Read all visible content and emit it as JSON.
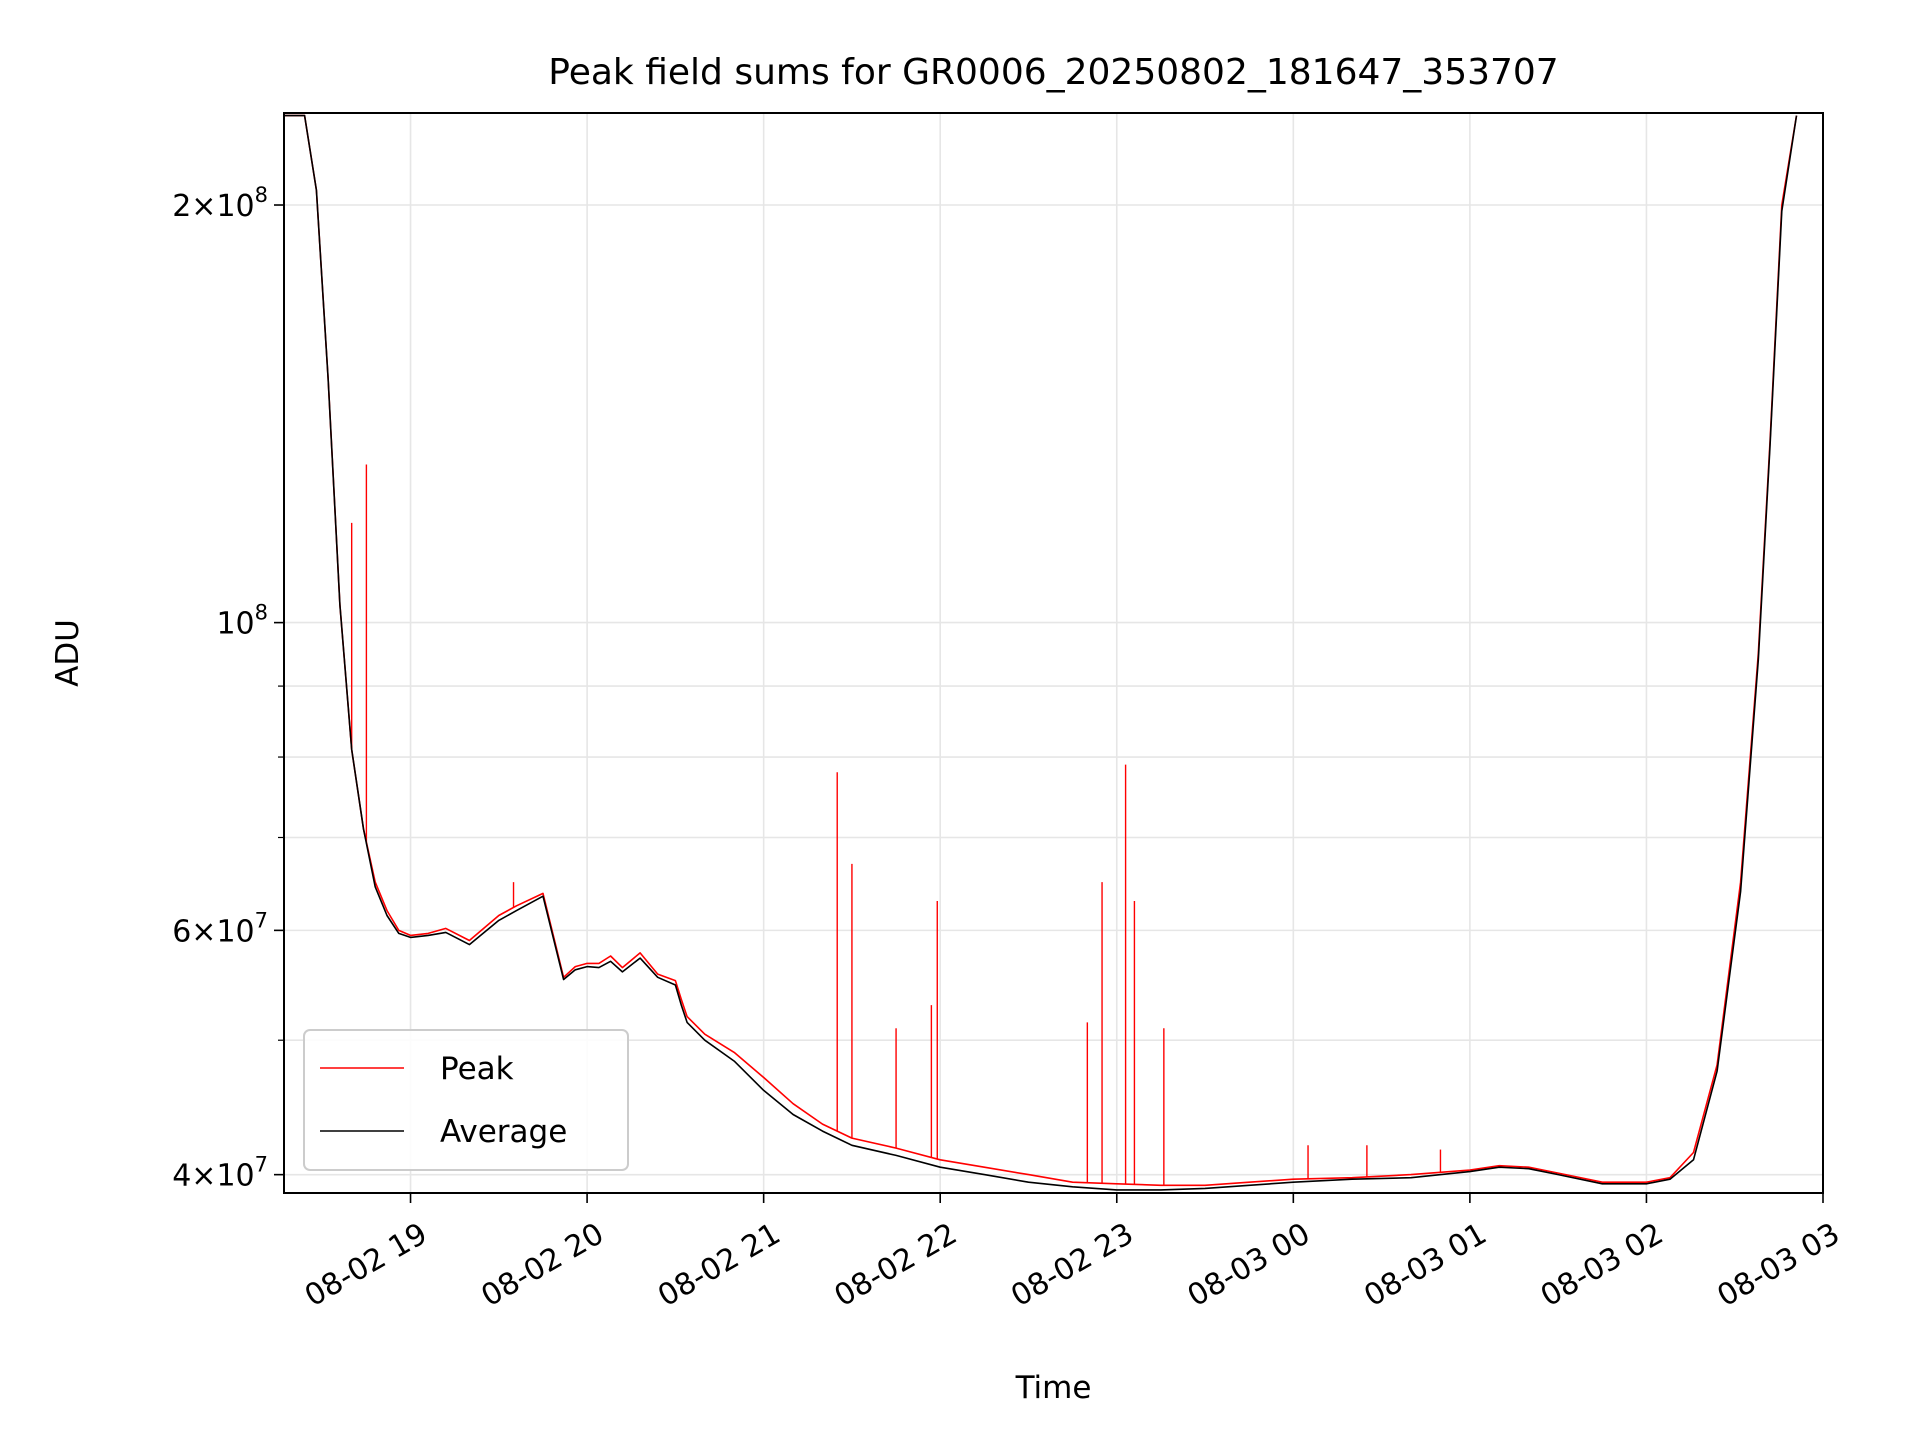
{
  "chart_data": {
    "type": "line",
    "title": "Peak field sums for GR0006_20250802_181647_353707",
    "xlabel": "Time",
    "ylabel": "ADU",
    "y_scale": "log",
    "ylim": [
      38800000,
      233000000
    ],
    "xlim": [
      "2025-08-02 18:17",
      "2025-08-03 03:00"
    ],
    "x_ticks": [
      {
        "value": "2025-08-02 19:00",
        "label": "08-02 19"
      },
      {
        "value": "2025-08-02 20:00",
        "label": "08-02 20"
      },
      {
        "value": "2025-08-02 21:00",
        "label": "08-02 21"
      },
      {
        "value": "2025-08-02 22:00",
        "label": "08-02 22"
      },
      {
        "value": "2025-08-02 23:00",
        "label": "08-02 23"
      },
      {
        "value": "2025-08-03 00:00",
        "label": "08-03 00"
      },
      {
        "value": "2025-08-03 01:00",
        "label": "08-03 01"
      },
      {
        "value": "2025-08-03 02:00",
        "label": "08-03 02"
      },
      {
        "value": "2025-08-03 03:00",
        "label": "08-03 03"
      }
    ],
    "y_ticks_major": [
      {
        "value": 40000000,
        "mantissa": "4",
        "exp": "7"
      },
      {
        "value": 60000000,
        "mantissa": "6",
        "exp": "7"
      },
      {
        "value": 100000000,
        "mantissa": "",
        "exp": "8"
      },
      {
        "value": 200000000,
        "mantissa": "2",
        "exp": "8"
      }
    ],
    "y_ticks_minor": [
      50000000,
      70000000,
      80000000,
      90000000
    ],
    "grid": true,
    "legend": {
      "placement": "lower-left"
    },
    "colors": {
      "peak": "#ff0000",
      "average": "#000000",
      "grid": "#e6e6e6"
    },
    "series": [
      {
        "name": "Peak",
        "color": "#ff0000",
        "x": [
          "2025-08-02 18:17",
          "2025-08-02 18:24",
          "2025-08-02 18:28",
          "2025-08-02 18:32",
          "2025-08-02 18:36",
          "2025-08-02 18:40",
          "2025-08-02 18:44",
          "2025-08-02 18:48",
          "2025-08-02 18:52",
          "2025-08-02 18:56",
          "2025-08-02 19:00",
          "2025-08-02 19:06",
          "2025-08-02 19:12",
          "2025-08-02 19:20",
          "2025-08-02 19:30",
          "2025-08-02 19:36",
          "2025-08-02 19:45",
          "2025-08-02 19:52",
          "2025-08-02 19:56",
          "2025-08-02 20:00",
          "2025-08-02 20:04",
          "2025-08-02 20:08",
          "2025-08-02 20:12",
          "2025-08-02 20:18",
          "2025-08-02 20:24",
          "2025-08-02 20:30",
          "2025-08-02 20:32",
          "2025-08-02 20:34",
          "2025-08-02 20:40",
          "2025-08-02 20:50",
          "2025-08-02 21:00",
          "2025-08-02 21:10",
          "2025-08-02 21:20",
          "2025-08-02 21:30",
          "2025-08-02 21:45",
          "2025-08-02 22:00",
          "2025-08-02 22:15",
          "2025-08-02 22:30",
          "2025-08-02 22:45",
          "2025-08-02 23:00",
          "2025-08-02 23:15",
          "2025-08-02 23:30",
          "2025-08-02 23:45",
          "2025-08-03 00:00",
          "2025-08-03 00:20",
          "2025-08-03 00:40",
          "2025-08-03 01:00",
          "2025-08-03 01:10",
          "2025-08-03 01:20",
          "2025-08-03 01:30",
          "2025-08-03 01:45",
          "2025-08-03 02:00",
          "2025-08-03 02:08",
          "2025-08-03 02:16",
          "2025-08-03 02:24",
          "2025-08-03 02:32",
          "2025-08-03 02:38",
          "2025-08-03 02:42",
          "2025-08-03 02:46",
          "2025-08-03 02:51"
        ],
        "y": [
          232000000,
          232000000,
          205000000,
          150000000,
          103000000,
          81000000,
          71000000,
          65000000,
          62000000,
          60000000,
          59500000,
          59700000,
          60200000,
          59000000,
          61500000,
          62500000,
          63800000,
          55500000,
          56500000,
          56800000,
          56800000,
          57500000,
          56400000,
          57800000,
          55800000,
          55200000,
          53500000,
          52000000,
          50500000,
          49000000,
          47000000,
          45000000,
          43500000,
          42500000,
          41800000,
          41000000,
          40500000,
          40000000,
          39500000,
          39400000,
          39300000,
          39300000,
          39500000,
          39700000,
          39800000,
          40000000,
          40300000,
          40600000,
          40500000,
          40100000,
          39500000,
          39500000,
          39800000,
          41500000,
          48000000,
          65000000,
          95000000,
          135000000,
          200000000,
          232000000
        ],
        "spikes": [
          {
            "x": "2025-08-02 18:45",
            "y": 130000000
          },
          {
            "x": "2025-08-02 18:40",
            "y": 118000000
          },
          {
            "x": "2025-08-02 19:35",
            "y": 65000000
          },
          {
            "x": "2025-08-02 21:25",
            "y": 78000000
          },
          {
            "x": "2025-08-02 21:30",
            "y": 67000000
          },
          {
            "x": "2025-08-02 21:45",
            "y": 51000000
          },
          {
            "x": "2025-08-02 21:57",
            "y": 53000000
          },
          {
            "x": "2025-08-02 21:59",
            "y": 63000000
          },
          {
            "x": "2025-08-02 22:50",
            "y": 51500000
          },
          {
            "x": "2025-08-02 22:55",
            "y": 65000000
          },
          {
            "x": "2025-08-02 23:03",
            "y": 79000000
          },
          {
            "x": "2025-08-02 23:06",
            "y": 63000000
          },
          {
            "x": "2025-08-02 23:16",
            "y": 51000000
          },
          {
            "x": "2025-08-03 00:05",
            "y": 42000000
          },
          {
            "x": "2025-08-03 00:25",
            "y": 42000000
          },
          {
            "x": "2025-08-03 00:50",
            "y": 41700000
          }
        ]
      },
      {
        "name": "Average",
        "color": "#000000",
        "x": [
          "2025-08-02 18:17",
          "2025-08-02 18:24",
          "2025-08-02 18:28",
          "2025-08-02 18:32",
          "2025-08-02 18:36",
          "2025-08-02 18:40",
          "2025-08-02 18:44",
          "2025-08-02 18:48",
          "2025-08-02 18:52",
          "2025-08-02 18:56",
          "2025-08-02 19:00",
          "2025-08-02 19:06",
          "2025-08-02 19:12",
          "2025-08-02 19:20",
          "2025-08-02 19:30",
          "2025-08-02 19:36",
          "2025-08-02 19:45",
          "2025-08-02 19:52",
          "2025-08-02 19:56",
          "2025-08-02 20:00",
          "2025-08-02 20:04",
          "2025-08-02 20:08",
          "2025-08-02 20:12",
          "2025-08-02 20:18",
          "2025-08-02 20:24",
          "2025-08-02 20:30",
          "2025-08-02 20:32",
          "2025-08-02 20:34",
          "2025-08-02 20:40",
          "2025-08-02 20:50",
          "2025-08-02 21:00",
          "2025-08-02 21:10",
          "2025-08-02 21:20",
          "2025-08-02 21:30",
          "2025-08-02 21:45",
          "2025-08-02 22:00",
          "2025-08-02 22:15",
          "2025-08-02 22:30",
          "2025-08-02 22:45",
          "2025-08-02 23:00",
          "2025-08-02 23:15",
          "2025-08-02 23:30",
          "2025-08-02 23:45",
          "2025-08-03 00:00",
          "2025-08-03 00:20",
          "2025-08-03 00:40",
          "2025-08-03 01:00",
          "2025-08-03 01:10",
          "2025-08-03 01:20",
          "2025-08-03 01:30",
          "2025-08-03 01:45",
          "2025-08-03 02:00",
          "2025-08-03 02:08",
          "2025-08-03 02:16",
          "2025-08-03 02:24",
          "2025-08-03 02:32",
          "2025-08-03 02:38",
          "2025-08-03 02:42",
          "2025-08-03 02:46",
          "2025-08-03 02:51"
        ],
        "y": [
          232000000,
          232000000,
          205000000,
          150000000,
          103000000,
          81000000,
          71000000,
          64500000,
          61500000,
          59700000,
          59300000,
          59500000,
          59800000,
          58600000,
          61000000,
          62000000,
          63500000,
          55300000,
          56200000,
          56500000,
          56400000,
          57000000,
          56000000,
          57300000,
          55500000,
          54800000,
          53000000,
          51500000,
          50000000,
          48300000,
          46000000,
          44200000,
          43000000,
          42000000,
          41300000,
          40500000,
          40000000,
          39500000,
          39200000,
          39000000,
          39000000,
          39100000,
          39300000,
          39500000,
          39700000,
          39800000,
          40200000,
          40500000,
          40400000,
          40000000,
          39400000,
          39400000,
          39700000,
          41000000,
          47500000,
          64000000,
          94000000,
          134000000,
          198000000,
          232000000
        ]
      }
    ]
  }
}
